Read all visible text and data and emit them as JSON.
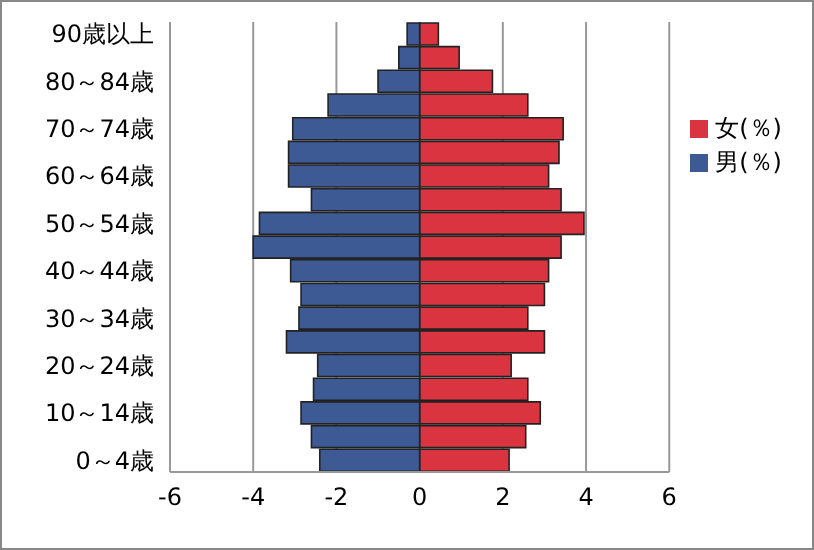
{
  "chart_data": {
    "type": "bar",
    "orientation": "horizontal",
    "stacked": true,
    "categories": [
      "90歳以上",
      null,
      "80～84歳",
      null,
      "70～74歳",
      null,
      "60～64歳",
      null,
      "50～54歳",
      null,
      "40～44歳",
      null,
      "30～34歳",
      null,
      "20～24歳",
      null,
      "10～14歳",
      null,
      "0～4歳"
    ],
    "series": [
      {
        "name": "女(％)",
        "color": "#d9343f",
        "values": [
          0.45,
          0.95,
          1.75,
          2.6,
          3.45,
          3.35,
          3.1,
          3.4,
          3.95,
          3.4,
          3.1,
          3.0,
          2.6,
          3.0,
          2.2,
          2.6,
          2.9,
          2.55,
          2.15
        ]
      },
      {
        "name": "男(％)",
        "color": "#3d5a94",
        "values": [
          -0.3,
          -0.5,
          -1.0,
          -2.2,
          -3.05,
          -3.15,
          -3.15,
          -2.6,
          -3.85,
          -4.0,
          -3.1,
          -2.85,
          -2.9,
          -3.2,
          -2.45,
          -2.55,
          -2.85,
          -2.6,
          -2.4
        ]
      }
    ],
    "xlim": [
      -6,
      6
    ],
    "xticks": [
      -6,
      -4,
      -2,
      0,
      2,
      4,
      6
    ],
    "grid": "x",
    "legend": "right"
  }
}
